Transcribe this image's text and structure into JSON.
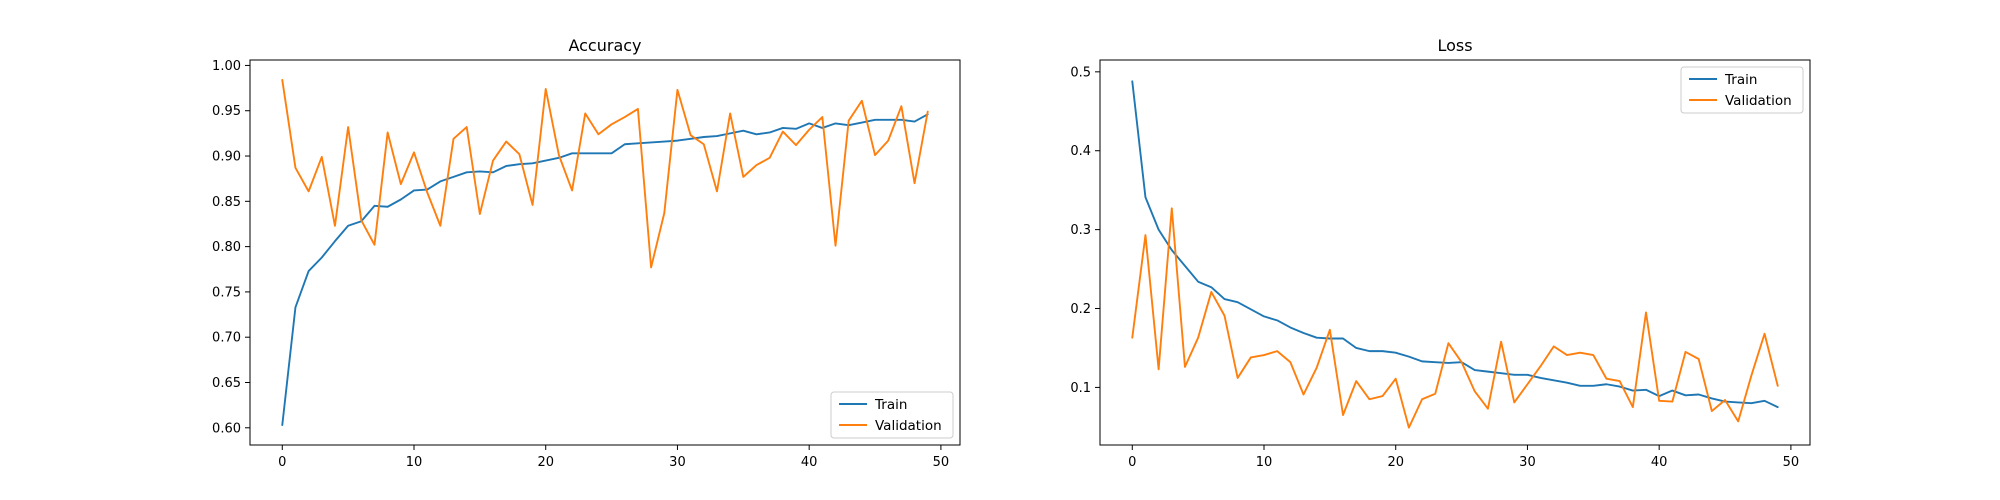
{
  "colors": {
    "train": "#1f77b4",
    "validation": "#ff7f0e"
  },
  "chart_data": [
    {
      "type": "line",
      "title": "Accuracy",
      "xlabel": "",
      "ylabel": "",
      "xlim": [
        -2.45,
        51.45
      ],
      "ylim": [
        0.581,
        1.006
      ],
      "xticks": [
        0,
        10,
        20,
        30,
        40,
        50
      ],
      "yticks": [
        0.6,
        0.65,
        0.7,
        0.75,
        0.8,
        0.85,
        0.9,
        0.95,
        1.0
      ],
      "ytick_decimals": 2,
      "grid": false,
      "legend": "bottom-right",
      "x": [
        0,
        1,
        2,
        3,
        4,
        5,
        6,
        7,
        8,
        9,
        10,
        11,
        12,
        13,
        14,
        15,
        16,
        17,
        18,
        19,
        20,
        21,
        22,
        23,
        24,
        25,
        26,
        27,
        28,
        29,
        30,
        31,
        32,
        33,
        34,
        35,
        36,
        37,
        38,
        39,
        40,
        41,
        42,
        43,
        44,
        45,
        46,
        47,
        48,
        49
      ],
      "series": [
        {
          "name": "Train",
          "color": "#1f77b4",
          "values": [
            0.603,
            0.733,
            0.773,
            0.788,
            0.806,
            0.823,
            0.828,
            0.845,
            0.844,
            0.852,
            0.862,
            0.863,
            0.872,
            0.877,
            0.882,
            0.883,
            0.882,
            0.889,
            0.891,
            0.892,
            0.895,
            0.898,
            0.903,
            0.903,
            0.903,
            0.903,
            0.913,
            0.914,
            0.915,
            0.916,
            0.917,
            0.919,
            0.921,
            0.922,
            0.925,
            0.928,
            0.924,
            0.926,
            0.931,
            0.93,
            0.936,
            0.931,
            0.936,
            0.934,
            0.937,
            0.94,
            0.94,
            0.94,
            0.938,
            0.946
          ]
        },
        {
          "name": "Validation",
          "color": "#ff7f0e",
          "values": [
            0.984,
            0.887,
            0.861,
            0.899,
            0.823,
            0.932,
            0.829,
            0.802,
            0.926,
            0.869,
            0.904,
            0.86,
            0.823,
            0.919,
            0.932,
            0.836,
            0.895,
            0.916,
            0.902,
            0.846,
            0.974,
            0.901,
            0.862,
            0.947,
            0.924,
            0.935,
            0.943,
            0.952,
            0.777,
            0.837,
            0.973,
            0.923,
            0.913,
            0.861,
            0.947,
            0.877,
            0.89,
            0.898,
            0.927,
            0.912,
            0.929,
            0.943,
            0.801,
            0.939,
            0.961,
            0.901,
            0.917,
            0.955,
            0.87,
            0.949
          ]
        }
      ]
    },
    {
      "type": "line",
      "title": "Loss",
      "xlabel": "",
      "ylabel": "",
      "xlim": [
        -2.45,
        51.45
      ],
      "ylim": [
        0.027,
        0.515
      ],
      "xticks": [
        0,
        10,
        20,
        30,
        40,
        50
      ],
      "yticks": [
        0.1,
        0.2,
        0.3,
        0.4,
        0.5
      ],
      "ytick_decimals": 1,
      "grid": false,
      "legend": "top-right",
      "x": [
        0,
        1,
        2,
        3,
        4,
        5,
        6,
        7,
        8,
        9,
        10,
        11,
        12,
        13,
        14,
        15,
        16,
        17,
        18,
        19,
        20,
        21,
        22,
        23,
        24,
        25,
        26,
        27,
        28,
        29,
        30,
        31,
        32,
        33,
        34,
        35,
        36,
        37,
        38,
        39,
        40,
        41,
        42,
        43,
        44,
        45,
        46,
        47,
        48,
        49
      ],
      "series": [
        {
          "name": "Train",
          "color": "#1f77b4",
          "values": [
            0.488,
            0.341,
            0.3,
            0.274,
            0.254,
            0.234,
            0.227,
            0.212,
            0.208,
            0.199,
            0.19,
            0.185,
            0.176,
            0.169,
            0.163,
            0.162,
            0.162,
            0.15,
            0.146,
            0.146,
            0.144,
            0.139,
            0.133,
            0.132,
            0.131,
            0.132,
            0.122,
            0.12,
            0.118,
            0.116,
            0.116,
            0.112,
            0.109,
            0.106,
            0.102,
            0.102,
            0.104,
            0.101,
            0.096,
            0.097,
            0.089,
            0.096,
            0.09,
            0.091,
            0.086,
            0.082,
            0.081,
            0.08,
            0.083,
            0.075
          ]
        },
        {
          "name": "Validation",
          "color": "#ff7f0e",
          "values": [
            0.163,
            0.293,
            0.123,
            0.327,
            0.126,
            0.163,
            0.221,
            0.191,
            0.112,
            0.138,
            0.141,
            0.146,
            0.132,
            0.091,
            0.125,
            0.173,
            0.065,
            0.108,
            0.085,
            0.089,
            0.111,
            0.049,
            0.085,
            0.092,
            0.156,
            0.132,
            0.095,
            0.073,
            0.158,
            0.081,
            0.104,
            0.127,
            0.152,
            0.141,
            0.144,
            0.141,
            0.111,
            0.108,
            0.075,
            0.195,
            0.083,
            0.082,
            0.145,
            0.136,
            0.07,
            0.084,
            0.057,
            0.115,
            0.168,
            0.102
          ]
        }
      ]
    }
  ]
}
